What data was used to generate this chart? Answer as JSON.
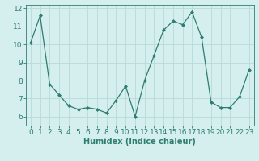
{
  "x": [
    0,
    1,
    2,
    3,
    4,
    5,
    6,
    7,
    8,
    9,
    10,
    11,
    12,
    13,
    14,
    15,
    16,
    17,
    18,
    19,
    20,
    21,
    22,
    23
  ],
  "y": [
    10.1,
    11.6,
    7.8,
    7.2,
    6.6,
    6.4,
    6.5,
    6.4,
    6.2,
    6.9,
    7.7,
    6.0,
    8.0,
    9.4,
    10.8,
    11.3,
    11.1,
    11.8,
    10.4,
    6.8,
    6.5,
    6.5,
    7.1,
    8.6
  ],
  "xlabel": "Humidex (Indice chaleur)",
  "ylim": [
    5.5,
    12.2
  ],
  "xlim": [
    -0.5,
    23.5
  ],
  "yticks": [
    6,
    7,
    8,
    9,
    10,
    11,
    12
  ],
  "xticks": [
    0,
    1,
    2,
    3,
    4,
    5,
    6,
    7,
    8,
    9,
    10,
    11,
    12,
    13,
    14,
    15,
    16,
    17,
    18,
    19,
    20,
    21,
    22,
    23
  ],
  "line_color": "#2e7d6e",
  "marker_color": "#2e7d6e",
  "bg_color": "#d4efed",
  "grid_color": "#b8dbd8",
  "spine_color": "#2e7d6e",
  "xlabel_color": "#2e7d6e",
  "tick_color": "#2e7d6e",
  "xlabel_fontsize": 7,
  "tick_fontsize": 6.5
}
